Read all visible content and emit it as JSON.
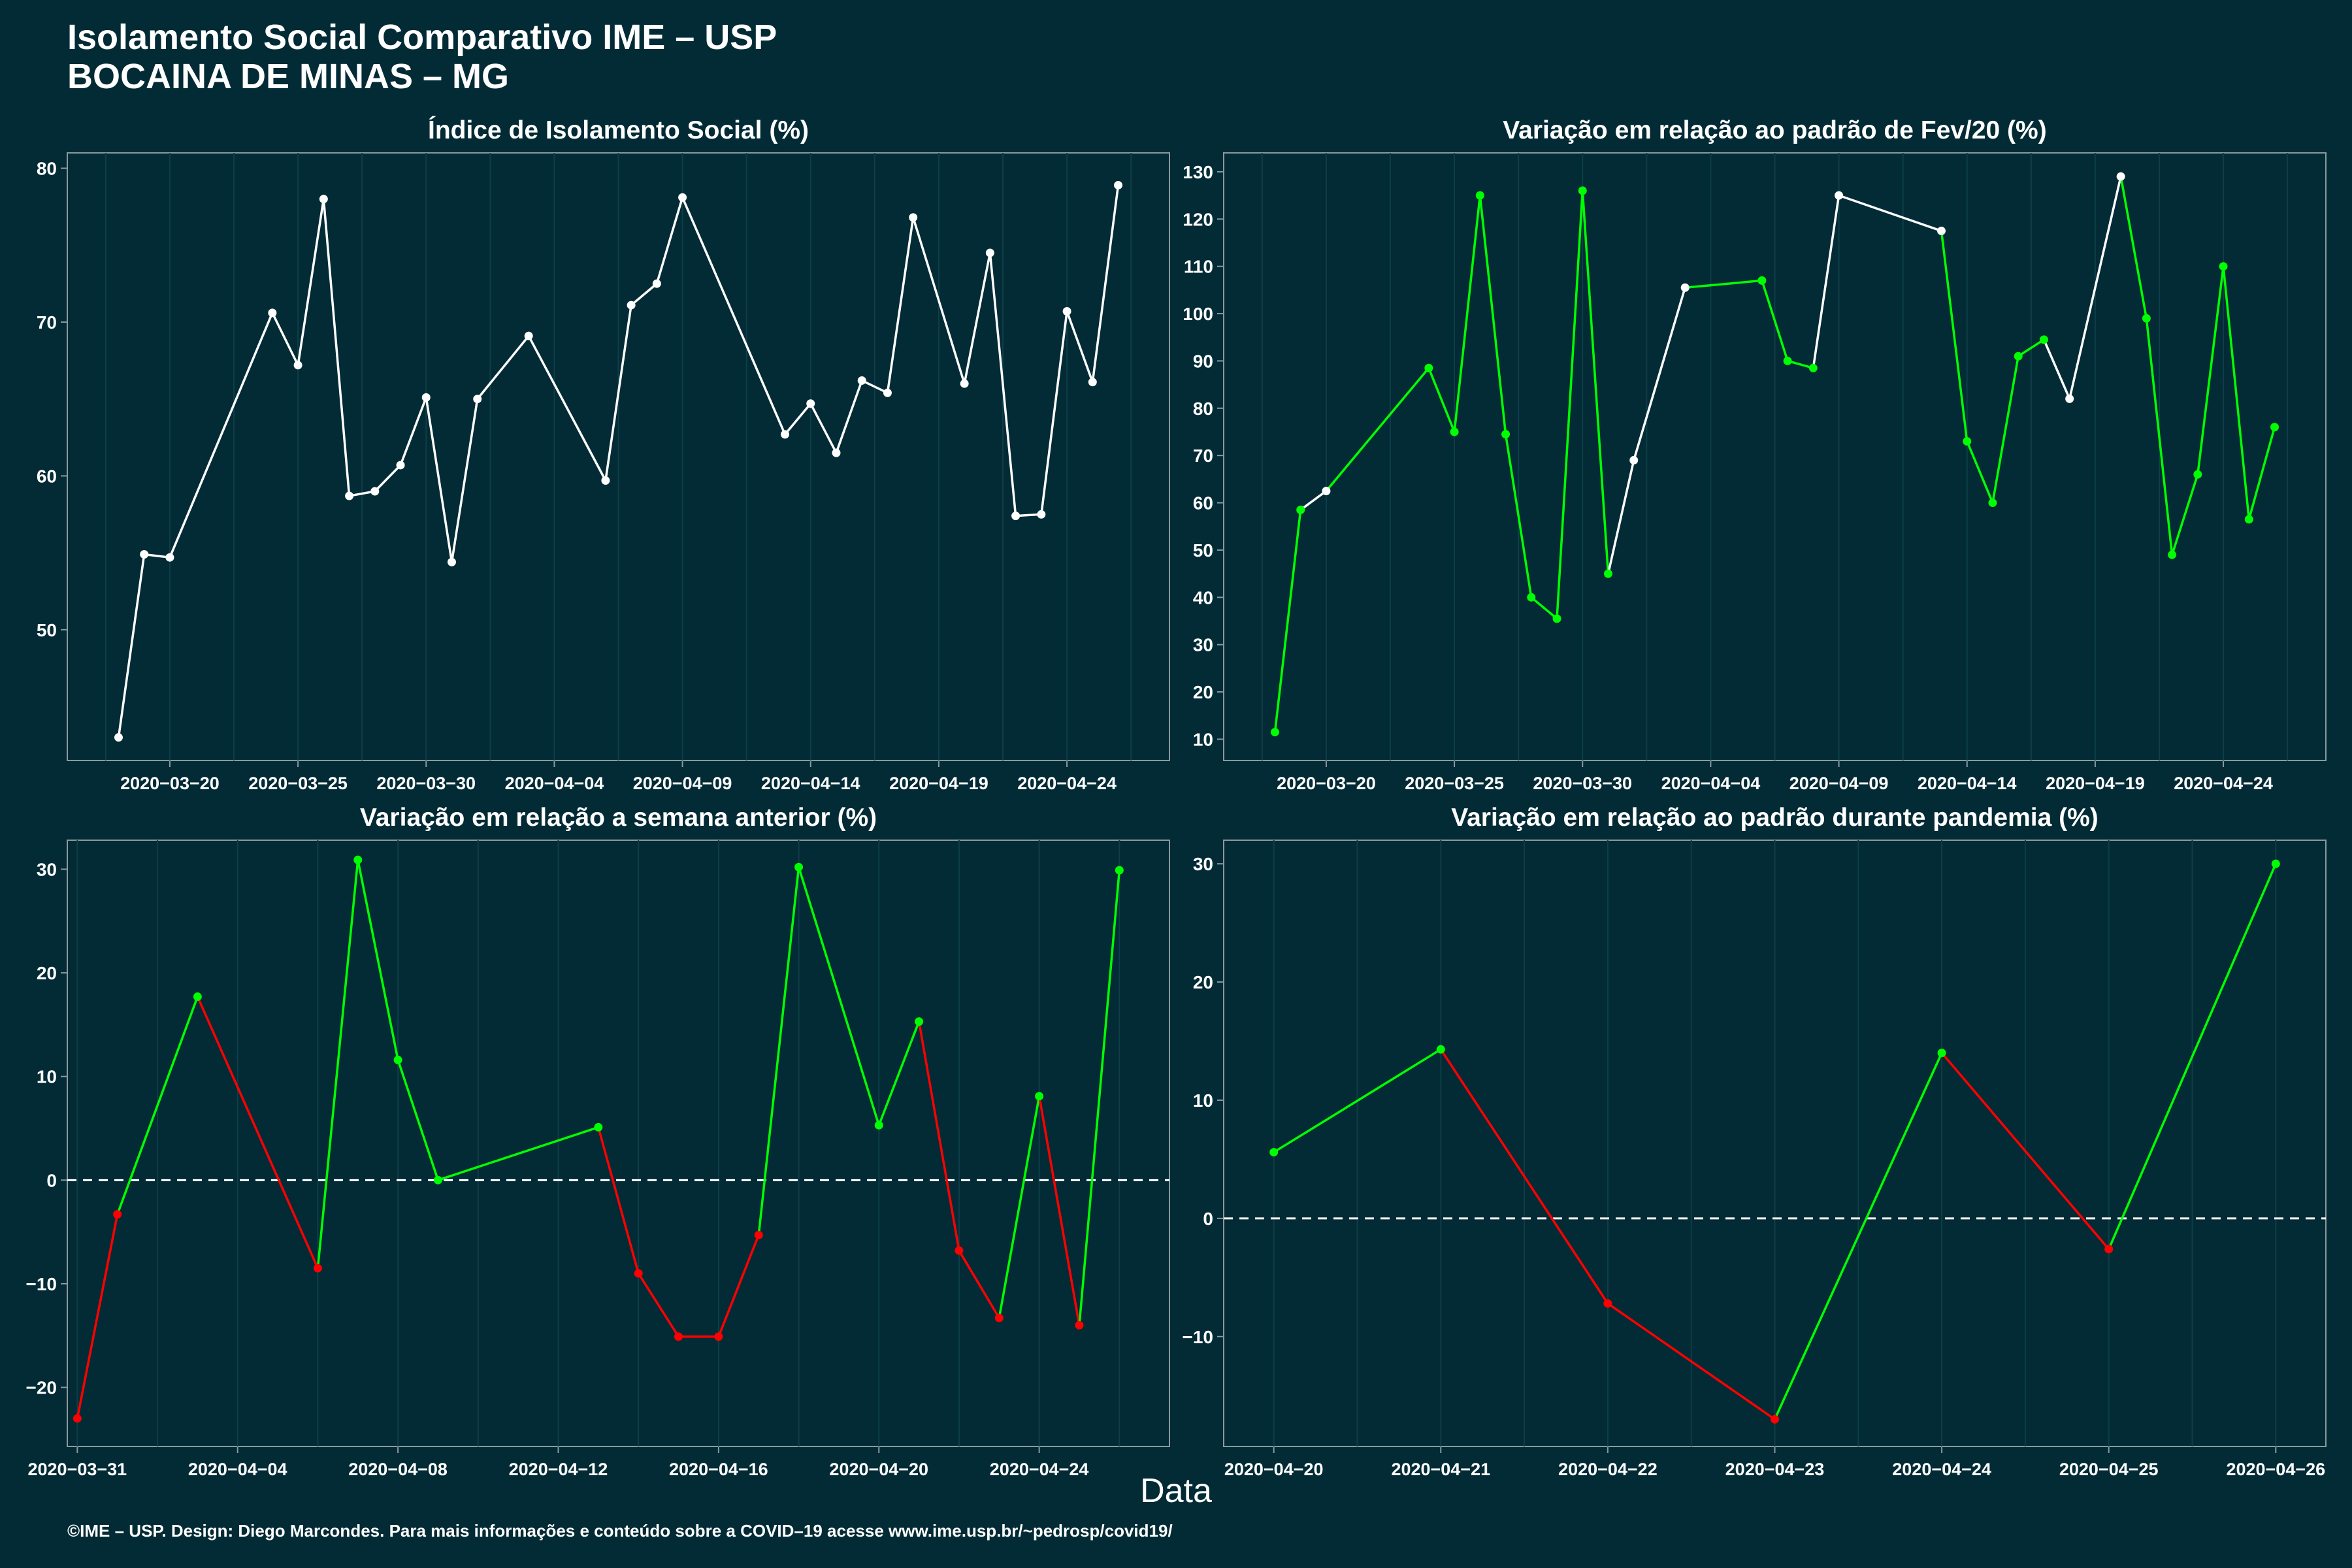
{
  "header": {
    "title_line1": "Isolamento Social Comparativo IME – USP",
    "title_line2": "BOCAINA DE MINAS – MG"
  },
  "x_axis_title": "Data",
  "footer": "©IME – USP. Design: Diego Marcondes. Para mais informações e conteúdo sobre a COVID–19 acesse www.ime.usp.br/~pedrosp/covid19/",
  "colors": {
    "background": "#022b35",
    "line": "#ffffff",
    "up": "#00ff00",
    "down": "#ff0000",
    "grid": "#0e3e47"
  },
  "chart_data": [
    {
      "id": "p1",
      "type": "line",
      "title": "Índice de Isolamento Social (%)",
      "xlim": [
        "2020-03-16",
        "2020-04-28"
      ],
      "ylim": [
        41.5,
        81
      ],
      "yticks": [
        50,
        60,
        70,
        80
      ],
      "xticks": [
        "2020-03-20",
        "2020-03-25",
        "2020-03-30",
        "2020-04-04",
        "2020-04-09",
        "2020-04-14",
        "2020-04-19",
        "2020-04-24"
      ],
      "zero_line": false,
      "x": [
        "2020-03-18",
        "2020-03-19",
        "2020-03-20",
        "2020-03-24",
        "2020-03-25",
        "2020-03-26",
        "2020-03-27",
        "2020-03-28",
        "2020-03-29",
        "2020-03-30",
        "2020-03-31",
        "2020-04-01",
        "2020-04-03",
        "2020-04-06",
        "2020-04-07",
        "2020-04-08",
        "2020-04-09",
        "2020-04-13",
        "2020-04-14",
        "2020-04-15",
        "2020-04-16",
        "2020-04-17",
        "2020-04-18",
        "2020-04-20",
        "2020-04-21",
        "2020-04-22",
        "2020-04-23",
        "2020-04-24",
        "2020-04-25",
        "2020-04-26"
      ],
      "y": [
        43,
        54.9,
        54.7,
        70.6,
        67.2,
        78,
        58.7,
        59,
        60.7,
        65.1,
        54.4,
        65,
        69.1,
        59.7,
        71.1,
        72.5,
        78.1,
        62.7,
        64.7,
        61.5,
        66.2,
        65.4,
        76.8,
        66,
        74.5,
        57.4,
        57.5,
        70.7,
        66.1,
        78.9
      ],
      "colors": [
        "w",
        "w",
        "w",
        "w",
        "w",
        "w",
        "w",
        "w",
        "w",
        "w",
        "w",
        "w",
        "w",
        "w",
        "w",
        "w",
        "w",
        "w",
        "w",
        "w",
        "w",
        "w",
        "w",
        "w",
        "w",
        "w",
        "w",
        "w",
        "w",
        "w"
      ]
    },
    {
      "id": "p2",
      "type": "line",
      "title": "Variação em relação ao padrão de Fev/20 (%)",
      "xlim": [
        "2020-03-16",
        "2020-04-28"
      ],
      "ylim": [
        5.5,
        134
      ],
      "yticks": [
        10,
        20,
        30,
        40,
        50,
        60,
        70,
        80,
        90,
        100,
        110,
        120,
        130
      ],
      "xticks": [
        "2020-03-20",
        "2020-03-25",
        "2020-03-30",
        "2020-04-04",
        "2020-04-09",
        "2020-04-14",
        "2020-04-19",
        "2020-04-24"
      ],
      "zero_line": false,
      "x": [
        "2020-03-18",
        "2020-03-19",
        "2020-03-20",
        "2020-03-24",
        "2020-03-25",
        "2020-03-26",
        "2020-03-27",
        "2020-03-28",
        "2020-03-29",
        "2020-03-30",
        "2020-03-31",
        "2020-04-01",
        "2020-04-03",
        "2020-04-06",
        "2020-04-07",
        "2020-04-08",
        "2020-04-09",
        "2020-04-13",
        "2020-04-14",
        "2020-04-15",
        "2020-04-16",
        "2020-04-17",
        "2020-04-18",
        "2020-04-20",
        "2020-04-21",
        "2020-04-22",
        "2020-04-23",
        "2020-04-24",
        "2020-04-25",
        "2020-04-26"
      ],
      "y": [
        11.5,
        58.5,
        62.5,
        88.5,
        75,
        125,
        74.5,
        40,
        35.5,
        126,
        45,
        69,
        105.5,
        107,
        90,
        88.5,
        125,
        117.5,
        73,
        60,
        91,
        94.5,
        82,
        129,
        99,
        49,
        66,
        110,
        56.5,
        76
      ],
      "colors": [
        "g",
        "g",
        "w",
        "g",
        "g",
        "g",
        "g",
        "g",
        "g",
        "g",
        "g",
        "w",
        "w",
        "g",
        "g",
        "g",
        "w",
        "w",
        "g",
        "g",
        "g",
        "g",
        "w",
        "w",
        "g",
        "g",
        "g",
        "g",
        "g",
        "g"
      ]
    },
    {
      "id": "p3",
      "type": "line",
      "title": "Variação em relação a semana anterior (%)",
      "xlim": [
        "2020-03-30.75",
        "2020-04-27.25"
      ],
      "ylim": [
        -25.7,
        32.8
      ],
      "yticks": [
        -20,
        -10,
        0,
        10,
        20,
        30
      ],
      "xticks": [
        "2020-03-31",
        "2020-04-04",
        "2020-04-08",
        "2020-04-12",
        "2020-04-16",
        "2020-04-20",
        "2020-04-24"
      ],
      "zero_line": true,
      "x": [
        "2020-03-31",
        "2020-04-01",
        "2020-04-03",
        "2020-04-06",
        "2020-04-07",
        "2020-04-08",
        "2020-04-09",
        "2020-04-13",
        "2020-04-14",
        "2020-04-15",
        "2020-04-16",
        "2020-04-17",
        "2020-04-18",
        "2020-04-20",
        "2020-04-21",
        "2020-04-22",
        "2020-04-23",
        "2020-04-24",
        "2020-04-25",
        "2020-04-26"
      ],
      "y": [
        -23,
        -3.3,
        17.7,
        -8.5,
        30.9,
        11.6,
        0,
        5.1,
        -9,
        -15.1,
        -15.1,
        -5.3,
        30.2,
        5.3,
        15.3,
        -6.8,
        -13.3,
        8.1,
        -14,
        29.9
      ],
      "colors": [
        "r",
        "r",
        "g",
        "r",
        "g",
        "g",
        "g",
        "g",
        "r",
        "r",
        "r",
        "r",
        "g",
        "g",
        "g",
        "r",
        "r",
        "g",
        "r",
        "g"
      ]
    },
    {
      "id": "p4",
      "type": "line",
      "title": "Variação em relação ao padrão durante pandemia (%)",
      "xlim": [
        "2020-04-19.7",
        "2020-04-26.3"
      ],
      "ylim": [
        -19.3,
        32
      ],
      "yticks": [
        -10,
        0,
        10,
        20,
        30
      ],
      "xticks": [
        "2020-04-20",
        "2020-04-21",
        "2020-04-22",
        "2020-04-23",
        "2020-04-24",
        "2020-04-25",
        "2020-04-26"
      ],
      "zero_line": true,
      "x": [
        "2020-04-20",
        "2020-04-21",
        "2020-04-22",
        "2020-04-23",
        "2020-04-24",
        "2020-04-25",
        "2020-04-26"
      ],
      "y": [
        5.6,
        14.3,
        -7.2,
        -17,
        14,
        -2.6,
        30
      ],
      "colors": [
        "g",
        "g",
        "r",
        "r",
        "g",
        "r",
        "g"
      ]
    }
  ]
}
